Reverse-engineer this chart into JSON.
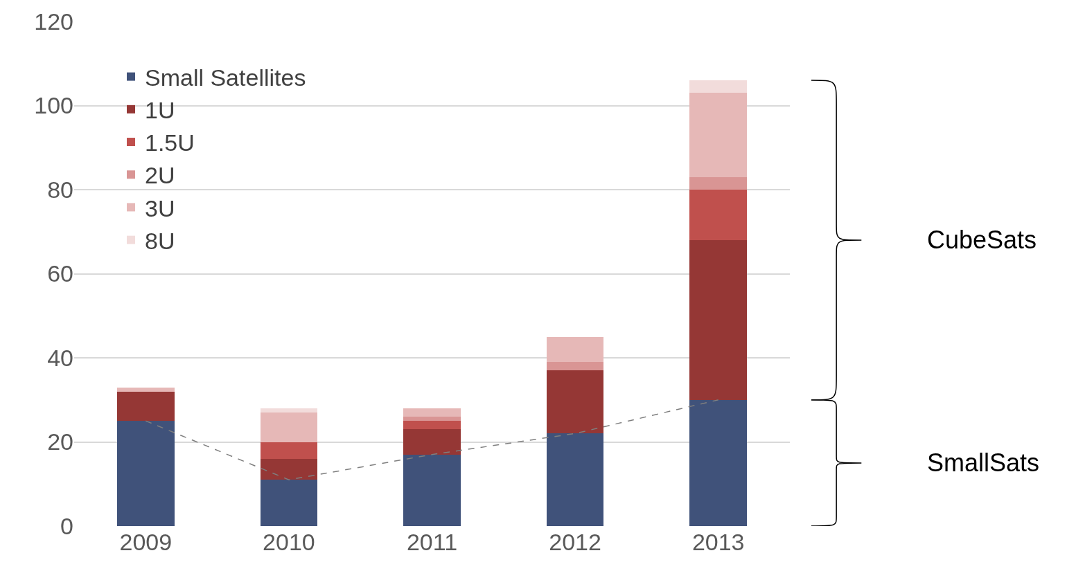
{
  "chart_data": {
    "type": "bar",
    "stacked": true,
    "categories": [
      "2009",
      "2010",
      "2011",
      "2012",
      "2013"
    ],
    "series": [
      {
        "name": "Small Satellites",
        "color": "#40527a",
        "values": [
          25,
          11,
          17,
          22,
          30
        ]
      },
      {
        "name": "1U",
        "color": "#953735",
        "values": [
          7,
          5,
          6,
          15,
          38
        ]
      },
      {
        "name": "1.5U",
        "color": "#c0504d",
        "values": [
          0,
          4,
          2,
          0,
          12
        ]
      },
      {
        "name": "2U",
        "color": "#d99594",
        "values": [
          0,
          0,
          1,
          2,
          3
        ]
      },
      {
        "name": "3U",
        "color": "#e6b8b7",
        "values": [
          1,
          7,
          2,
          6,
          20
        ]
      },
      {
        "name": "8U",
        "color": "#f2dcdb",
        "values": [
          0,
          1,
          0,
          0,
          3
        ]
      },
      {
        "type": "line",
        "color": "#7f7f7f",
        "line_style": "dashed",
        "marker": "none",
        "values": [
          25,
          11,
          17,
          22,
          30
        ]
      }
    ],
    "ylim": [
      0,
      120
    ],
    "yticks": [
      0,
      20,
      40,
      60,
      80,
      100,
      120
    ],
    "grid": "y",
    "legend": "top left",
    "annotations": [
      "CubeSats",
      "SmallSats"
    ]
  }
}
